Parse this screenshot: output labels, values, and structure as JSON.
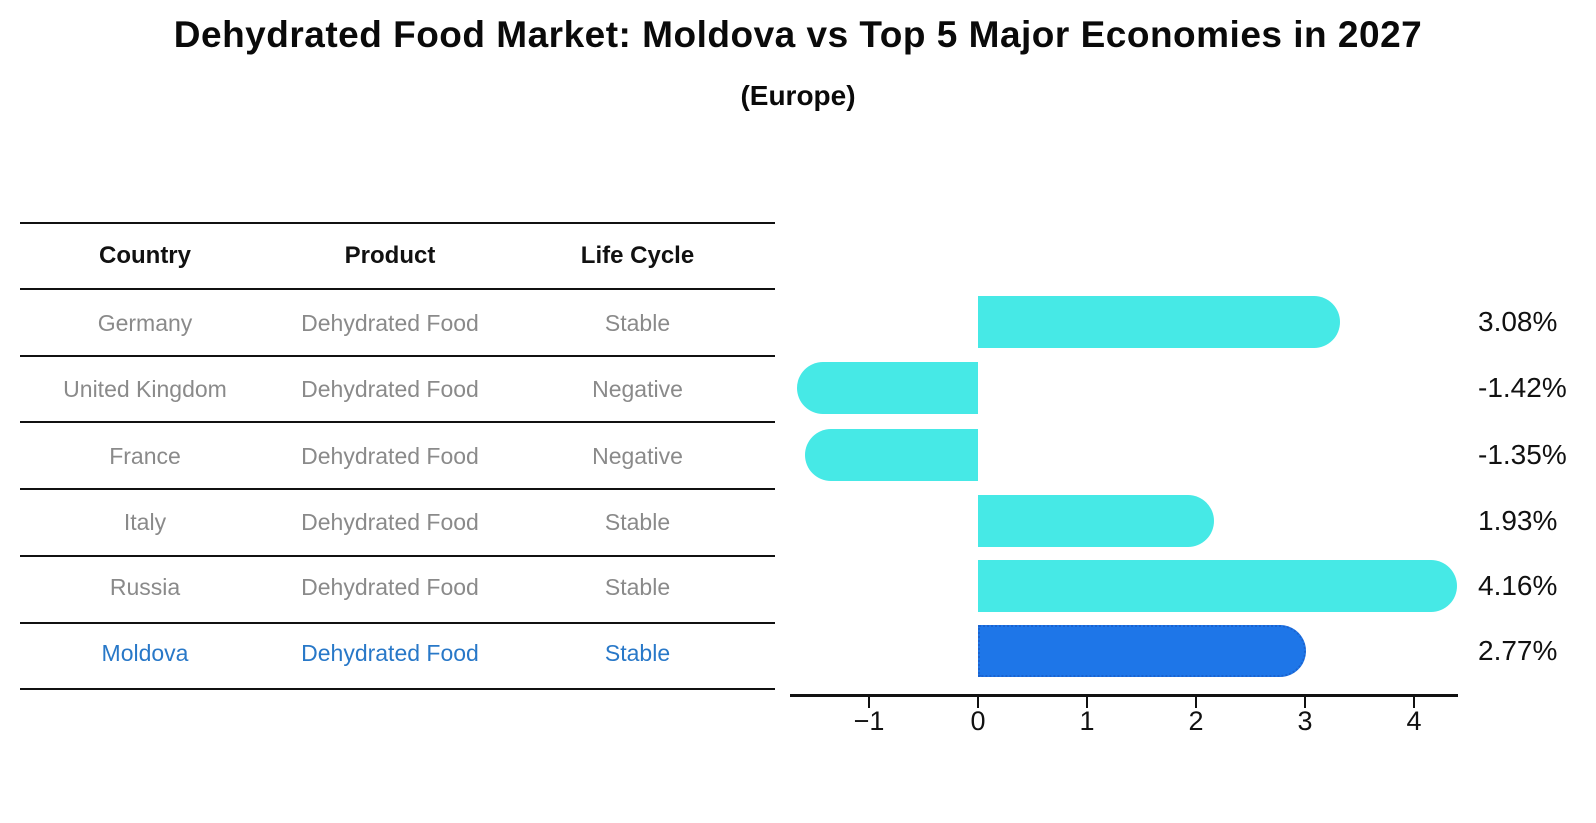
{
  "title": "Dehydrated Food Market: Moldova vs Top 5 Major Economies in 2027",
  "subtitle": "(Europe)",
  "table": {
    "headers": [
      "Country",
      "Product",
      "Life Cycle"
    ],
    "rows": [
      {
        "country": "Germany",
        "product": "Dehydrated Food",
        "life_cycle": "Stable",
        "highlighted": false
      },
      {
        "country": "United Kingdom",
        "product": "Dehydrated Food",
        "life_cycle": "Negative",
        "highlighted": false
      },
      {
        "country": "France",
        "product": "Dehydrated Food",
        "life_cycle": "Negative",
        "highlighted": false
      },
      {
        "country": "Italy",
        "product": "Dehydrated Food",
        "life_cycle": "Stable",
        "highlighted": false
      },
      {
        "country": "Russia",
        "product": "Dehydrated Food",
        "life_cycle": "Stable",
        "highlighted": true,
        "country_override": null
      },
      {
        "country": "Moldova",
        "product": "Dehydrated Food",
        "life_cycle": "Stable",
        "highlighted": true
      }
    ]
  },
  "colors": {
    "header_text": "#111111",
    "row_text": "#8a8a8a",
    "highlight_text": "#2878c8",
    "bar_cyan": "#46e9e6",
    "bar_blue": "#1e76e8",
    "bar_blue_border": "#1b63cf",
    "axis": "#111111"
  },
  "chart_data": {
    "type": "bar",
    "orientation": "horizontal",
    "title": "Dehydrated Food Market: Moldova vs Top 5 Major Economies in 2027 (Europe)",
    "xlabel": "",
    "ylabel": "",
    "categories": [
      "Germany",
      "United Kingdom",
      "France",
      "Italy",
      "Russia",
      "Moldova"
    ],
    "values": [
      3.08,
      -1.42,
      -1.35,
      1.93,
      4.16,
      2.77
    ],
    "value_labels": [
      "3.08%",
      "-1.42%",
      "-1.35%",
      "1.93%",
      "4.16%",
      "2.77%"
    ],
    "unit": "percent",
    "highlight_index": 5,
    "bar_color": "#46e9e6",
    "highlight_color": "#1e76e8",
    "highlight_border_color": "#1b63cf",
    "xticks": {
      "values": [
        -1,
        0,
        1,
        2,
        3,
        4
      ],
      "labels": [
        "−1",
        "0",
        "1",
        "2",
        "3",
        "4"
      ]
    },
    "xlim": [
      -1.72,
      4.43
    ],
    "grid": false,
    "legend": false
  }
}
